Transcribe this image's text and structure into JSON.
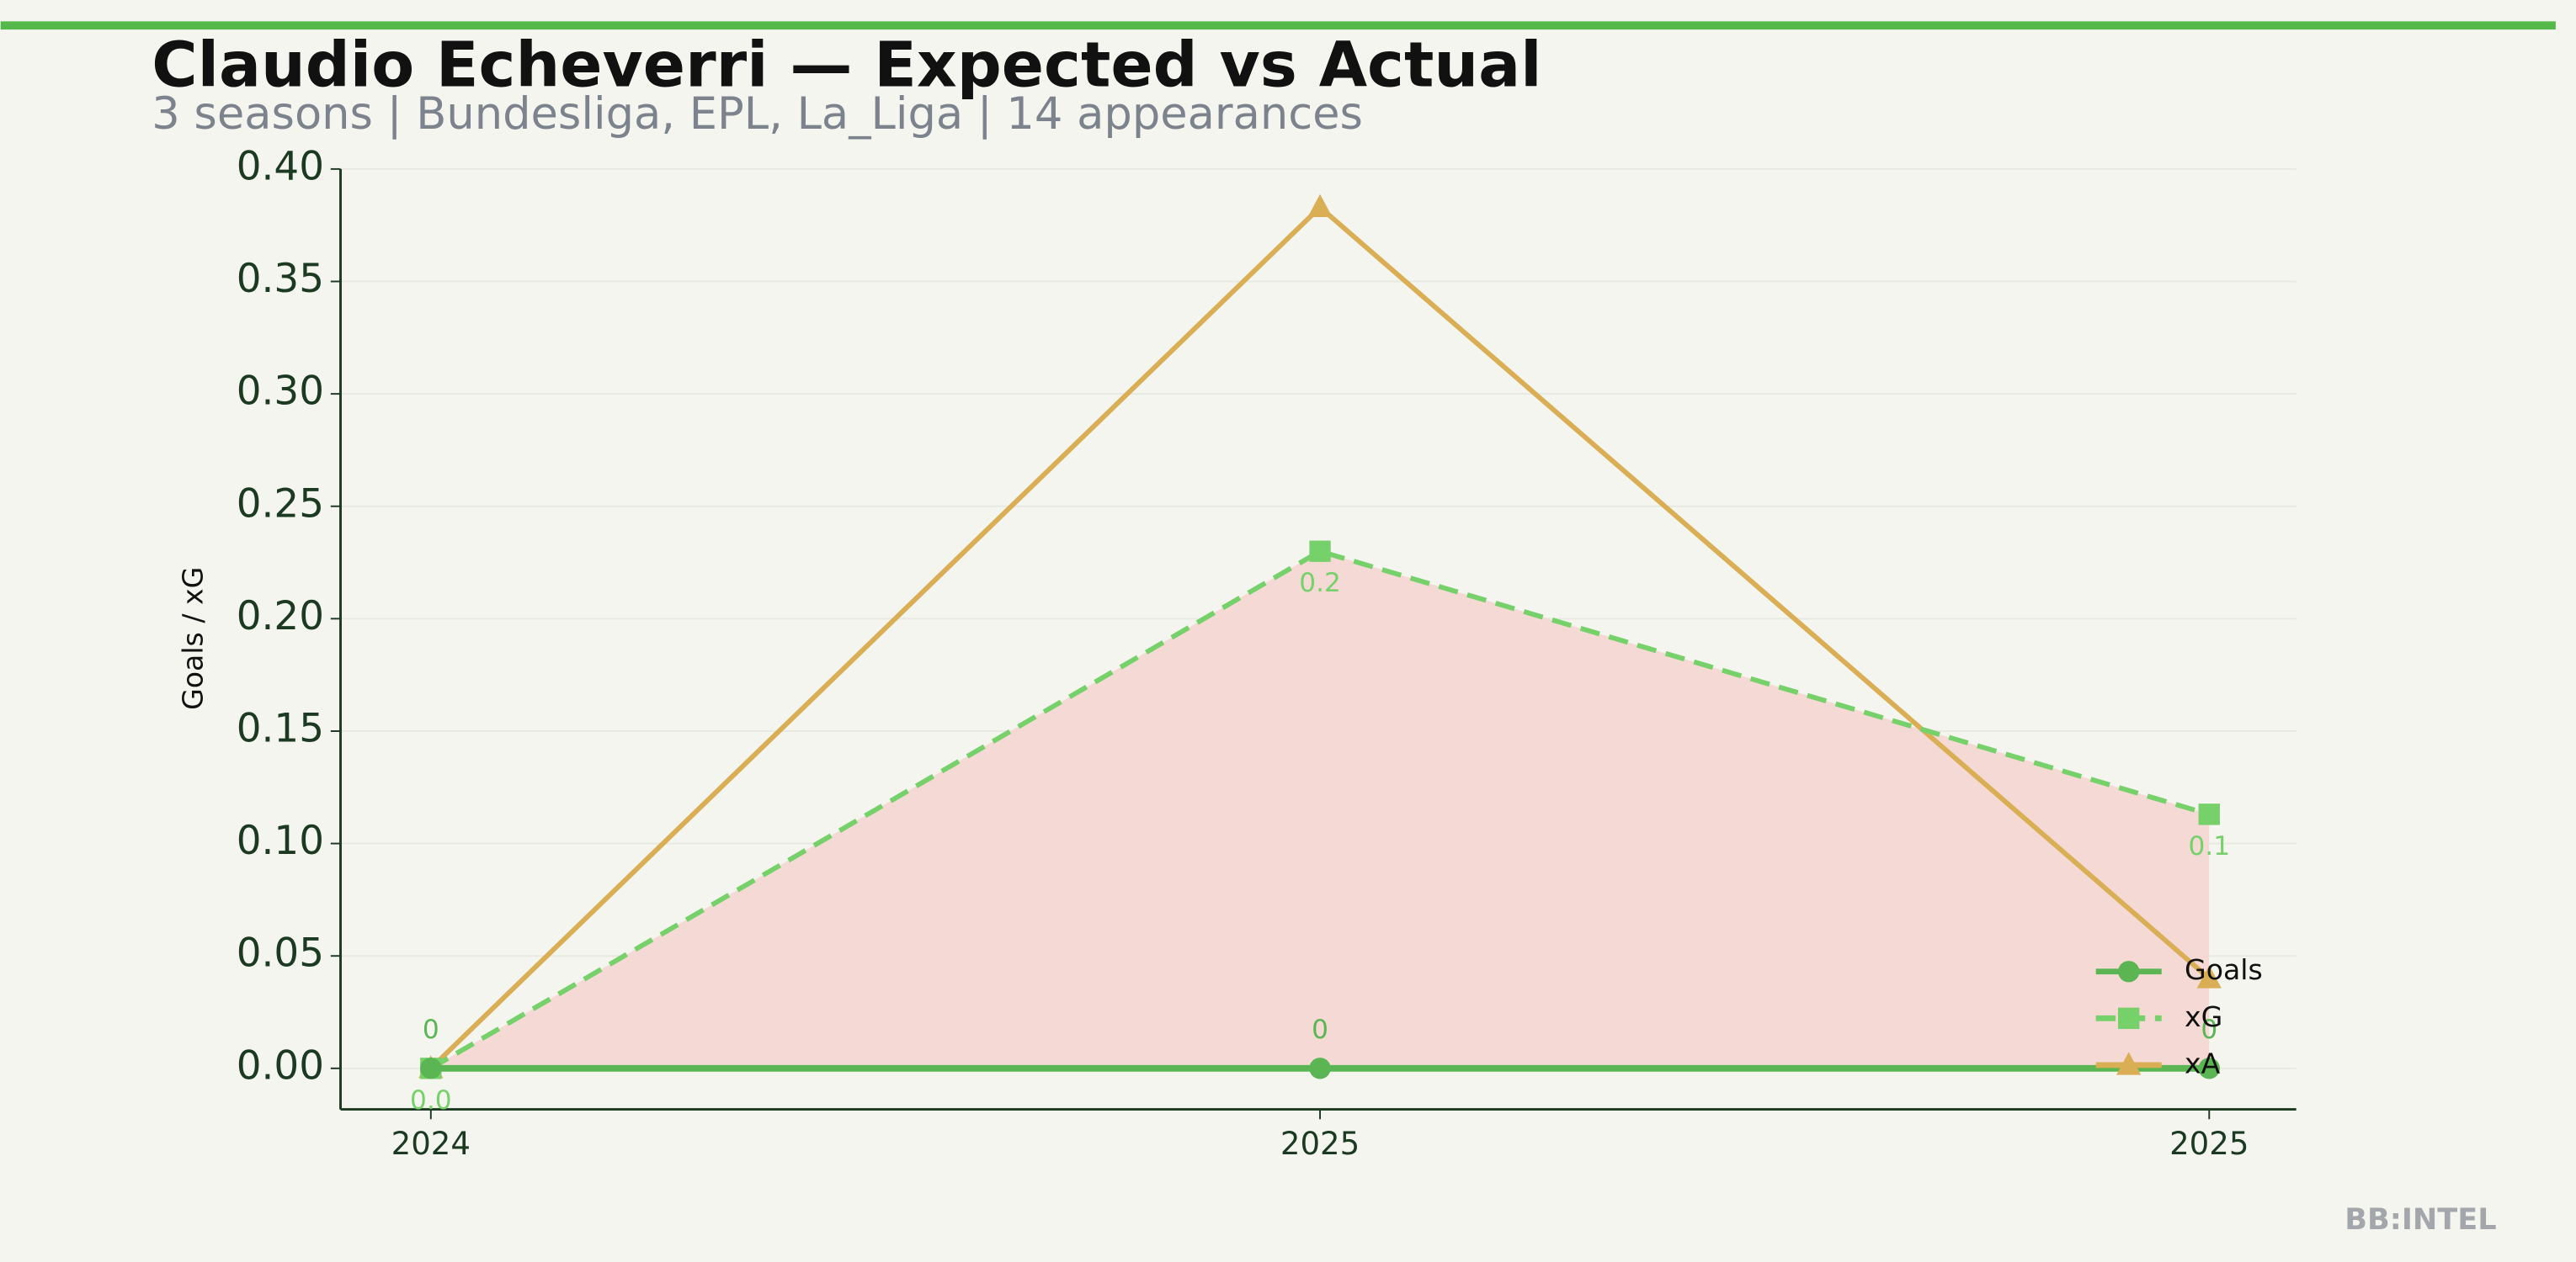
{
  "chart_data": {
    "type": "line",
    "title": "Claudio Echeverri — Expected vs Actual",
    "subtitle": "3 seasons | Bundesliga, EPL, La_Liga | 14 appearances",
    "y_label": "Goals / xG",
    "watermark": "BB:INTEL",
    "categories": [
      "2024",
      "2025",
      "2025"
    ],
    "series": [
      {
        "name": "Goals",
        "color": "#5ab552",
        "marker": "circle",
        "dash": false,
        "values": [
          0,
          0,
          0
        ],
        "value_labels": [
          "0",
          "0",
          "0"
        ]
      },
      {
        "name": "xG",
        "color": "#77d16a",
        "marker": "square",
        "dash": true,
        "values": [
          0,
          0.23,
          0.113
        ],
        "value_labels": [
          "0.0",
          "0.2",
          "0.1"
        ]
      },
      {
        "name": "xA",
        "color": "#d9ae55",
        "marker": "triangle",
        "dash": false,
        "values": [
          0,
          0.383,
          0.04
        ]
      }
    ],
    "fill_between": {
      "series": [
        0,
        1
      ],
      "color": "#f5d6d2"
    },
    "ylim": [
      0,
      0.4
    ],
    "yticks": [
      {
        "value": 0,
        "label": "0.00"
      },
      {
        "value": 0.05,
        "label": "0.05"
      },
      {
        "value": 0.1,
        "label": "0.10"
      },
      {
        "value": 0.15,
        "label": "0.15"
      },
      {
        "value": 0.2,
        "label": "0.20"
      },
      {
        "value": 0.25,
        "label": "0.25"
      },
      {
        "value": 0.3,
        "label": "0.30"
      },
      {
        "value": 0.35,
        "label": "0.35"
      },
      {
        "value": 0.4,
        "label": "0.40"
      }
    ],
    "grid": true,
    "legend": "lower right"
  }
}
